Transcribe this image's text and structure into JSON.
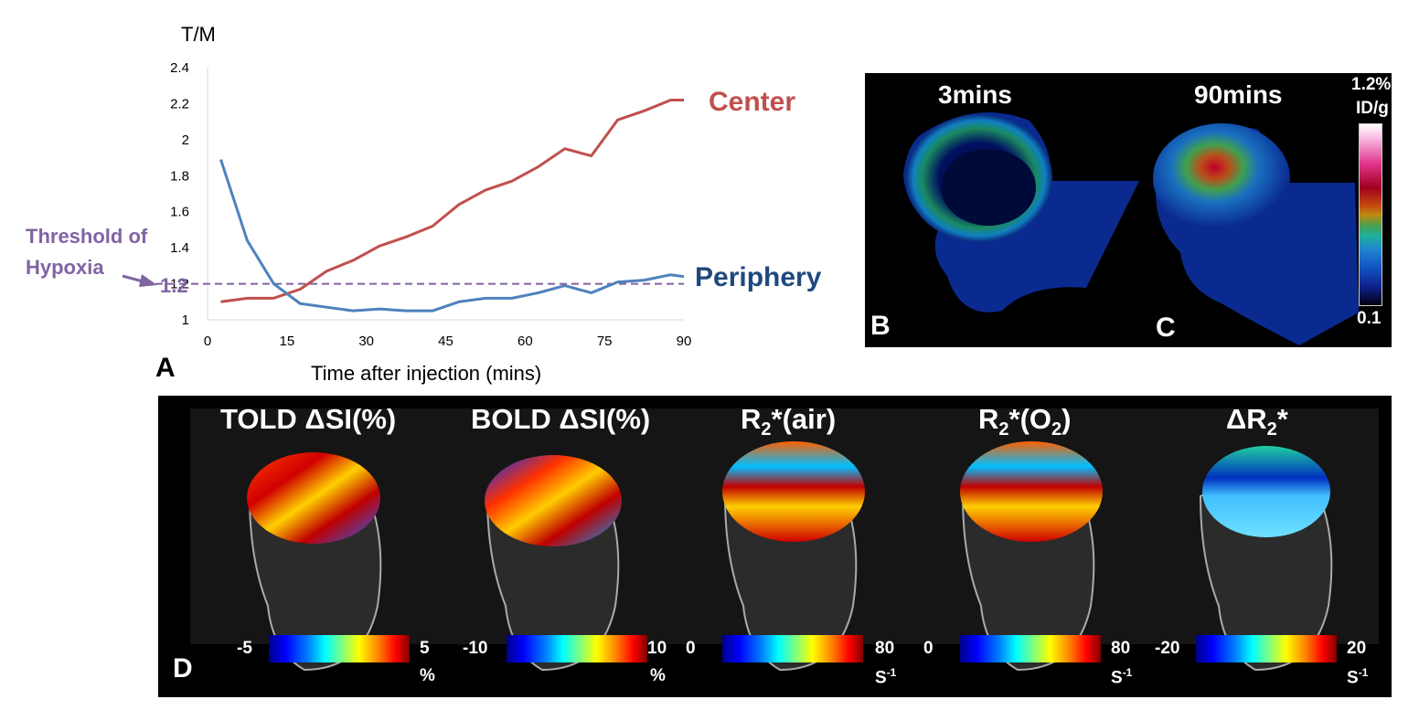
{
  "chart_data": {
    "type": "line",
    "ylabel": "T/M",
    "xlabel": "Time after injection (mins)",
    "xlim": [
      0,
      90
    ],
    "ylim": [
      1,
      2.4
    ],
    "xticks": [
      0,
      15,
      30,
      45,
      60,
      75,
      90
    ],
    "yticks": [
      1,
      1.2,
      1.4,
      1.6,
      1.8,
      2,
      2.2,
      2.4
    ],
    "xtick_labels": [
      "0",
      "15",
      "30",
      "45",
      "60",
      "75",
      "90"
    ],
    "ytick_labels": [
      "1",
      "1.2",
      "1.4",
      "1.6",
      "1.8",
      "2",
      "2.2",
      "2.4"
    ],
    "series": [
      {
        "name": "Center",
        "color": "#c0504d",
        "x": [
          2.5,
          7.5,
          12.5,
          17.5,
          22.5,
          27.5,
          32.5,
          37.5,
          42.5,
          47.5,
          52.5,
          57.5,
          62.5,
          67.5,
          72.5,
          77.5,
          82.5,
          87.5,
          90
        ],
        "y": [
          1.1,
          1.12,
          1.12,
          1.17,
          1.27,
          1.33,
          1.41,
          1.46,
          1.52,
          1.64,
          1.72,
          1.77,
          1.85,
          1.95,
          1.91,
          2.11,
          2.16,
          2.22,
          2.22
        ]
      },
      {
        "name": "Periphery",
        "color": "#4f81bd",
        "x": [
          2.5,
          7.5,
          12.5,
          17.5,
          22.5,
          27.5,
          32.5,
          37.5,
          42.5,
          47.5,
          52.5,
          57.5,
          62.5,
          67.5,
          72.5,
          77.5,
          82.5,
          87.5,
          90
        ],
        "y": [
          1.89,
          1.44,
          1.2,
          1.09,
          1.07,
          1.05,
          1.06,
          1.05,
          1.05,
          1.1,
          1.12,
          1.12,
          1.15,
          1.19,
          1.15,
          1.21,
          1.22,
          1.25,
          1.24
        ]
      }
    ],
    "threshold": {
      "value": 1.2,
      "label_line1": "Threshold of",
      "label_line2": "Hypoxia",
      "value_label": "1.2",
      "color": "#8064a2"
    },
    "series_labels": {
      "center": "Center",
      "periphery": "Periphery"
    },
    "center_label_color": "#c0504d",
    "periphery_label_color": "#1f497d"
  },
  "panels": {
    "a": "A",
    "b": "B",
    "c": "C",
    "d": "D"
  },
  "pet": {
    "left_title": "3mins",
    "right_title": "90mins",
    "scale_max_line1": "1.2%",
    "scale_max_line2": "ID/g",
    "scale_min": "0.1"
  },
  "mri": {
    "maps": [
      {
        "title": "TOLD ΔSI(%)",
        "min": "-5",
        "max": "5",
        "unit": "%"
      },
      {
        "title": "BOLD ΔSI(%)",
        "min": "-10",
        "max": "10",
        "unit": "%"
      },
      {
        "title_main": "R",
        "title_sub": "2",
        "title_rest": "*(air)",
        "min": "0",
        "max": "80",
        "unit_main": "S",
        "unit_sup": "-1"
      },
      {
        "title_main": "R",
        "title_sub": "2",
        "title_rest": "*(O",
        "title_sub2": "2",
        "title_end": ")",
        "min": "0",
        "max": "80",
        "unit_main": "S",
        "unit_sup": "-1"
      },
      {
        "title_main": "ΔR",
        "title_sub": "2",
        "title_rest": "*",
        "min": "-20",
        "max": "20",
        "unit_main": "S",
        "unit_sup": "-1"
      }
    ]
  }
}
